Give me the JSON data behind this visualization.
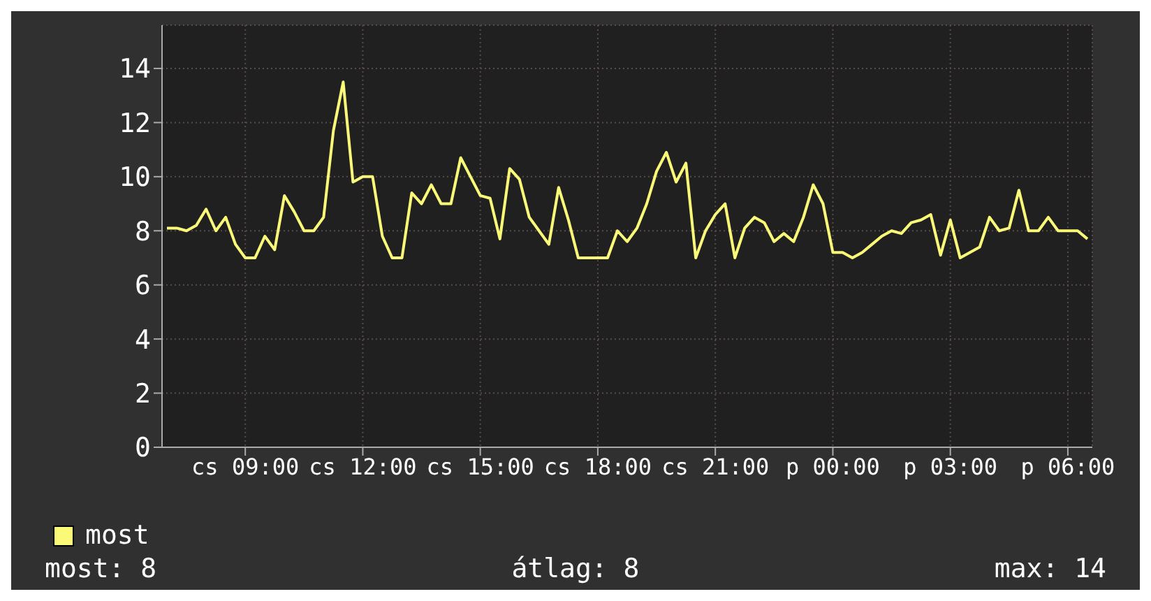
{
  "chart_data": {
    "type": "line",
    "categories": [
      null,
      null,
      null,
      null,
      null,
      null,
      null,
      null,
      "cs 09:00",
      null,
      null,
      null,
      null,
      null,
      null,
      null,
      null,
      null,
      null,
      null,
      "cs 12:00",
      null,
      null,
      null,
      null,
      null,
      null,
      null,
      null,
      null,
      null,
      null,
      "cs 15:00",
      null,
      null,
      null,
      null,
      null,
      null,
      null,
      null,
      null,
      null,
      null,
      "cs 18:00",
      null,
      null,
      null,
      null,
      null,
      null,
      null,
      null,
      null,
      null,
      null,
      "cs 21:00",
      null,
      null,
      null,
      null,
      null,
      null,
      null,
      null,
      null,
      null,
      null,
      "p 00:00",
      null,
      null,
      null,
      null,
      null,
      null,
      null,
      null,
      null,
      null,
      null,
      "p 03:00",
      null,
      null,
      null,
      null,
      null,
      null,
      null,
      null,
      null,
      null,
      null,
      "p 06:00",
      null,
      null
    ],
    "series": [
      {
        "name": "most",
        "color": "#fafa78",
        "values": [
          8.1,
          8.1,
          8,
          8.2,
          8.8,
          8,
          8.5,
          7.5,
          7,
          7,
          7.8,
          7.3,
          9.3,
          8.7,
          8,
          8,
          8.5,
          11.7,
          13.5,
          9.8,
          10,
          10,
          7.8,
          7,
          7,
          9.4,
          9,
          9.7,
          9,
          9,
          10.7,
          10,
          9.3,
          9.2,
          7.7,
          10.3,
          9.9,
          8.5,
          8,
          7.5,
          9.6,
          8.4,
          7,
          7,
          7,
          7,
          8,
          7.6,
          8.1,
          9,
          10.2,
          10.9,
          9.8,
          10.5,
          7,
          8,
          8.6,
          9,
          7,
          8.1,
          8.5,
          8.3,
          7.6,
          7.9,
          7.6,
          8.5,
          9.7,
          9,
          7.2,
          7.2,
          7,
          7.2,
          7.5,
          7.8,
          8,
          7.9,
          8.3,
          8.4,
          8.6,
          7.1,
          8.4,
          7,
          7.2,
          7.4,
          8.5,
          8,
          8.1,
          9.5,
          8,
          8,
          8.5,
          8,
          8,
          8,
          7.7
        ]
      }
    ],
    "ylim": [
      0,
      15.6
    ],
    "yticks": [
      0,
      2,
      4,
      6,
      8,
      10,
      12,
      14
    ],
    "grid": true,
    "legend": "bottom left",
    "marker": "none",
    "line_style": "solid",
    "annotations": [
      "most: 8",
      "átlag: 8",
      "max: 14"
    ]
  }
}
